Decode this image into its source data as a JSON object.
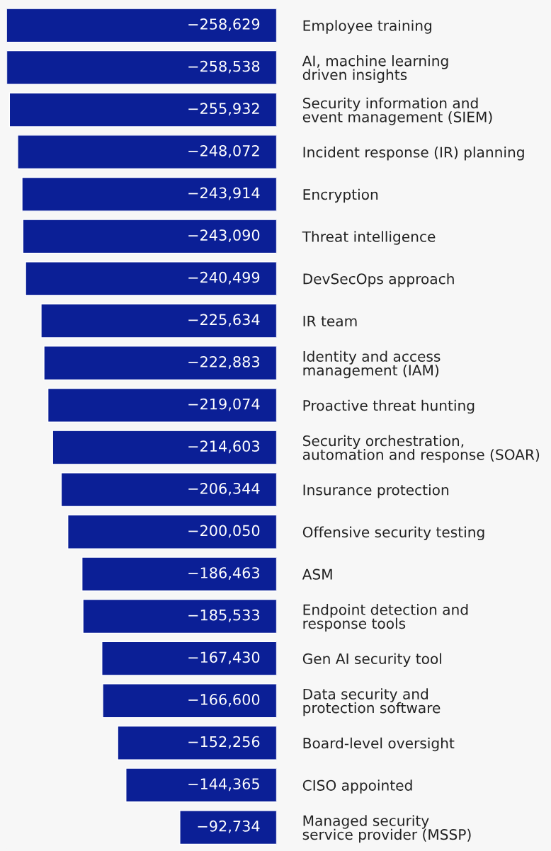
{
  "chart_data": {
    "type": "bar",
    "orientation": "horizontal",
    "tick_labels": "y",
    "grid": false,
    "legend": false,
    "categories": [
      "Employee training",
      "AI, machine learning\ndriven insights",
      "Security information and\nevent management (SIEM)",
      "Incident response (IR) planning",
      "Encryption",
      "Threat intelligence",
      "DevSecOps approach",
      "IR team",
      "Identity and access\nmanagement (IAM)",
      "Proactive threat hunting",
      "Security orchestration,\nautomation and response (SOAR)",
      "Insurance protection",
      "Offensive security testing",
      "ASM",
      "Endpoint detection and\nresponse tools",
      "Gen AI security tool",
      "Data security and\nprotection software",
      "Board-level oversight",
      "CISO appointed",
      "Managed security\nservice provider (MSSP)"
    ],
    "values": [
      -258629,
      -258538,
      -255932,
      -248072,
      -243914,
      -243090,
      -240499,
      -225634,
      -222883,
      -219074,
      -214603,
      -206344,
      -200050,
      -186463,
      -185533,
      -167430,
      -166600,
      -152256,
      -144365,
      -92734
    ],
    "value_labels": [
      "−258,629",
      "−258,538",
      "−255,932",
      "−248,072",
      "−243,914",
      "−243,090",
      "−240,499",
      "−225,634",
      "−222,883",
      "−219,074",
      "−214,603",
      "−206,344",
      "−200,050",
      "−186,463",
      "−185,533",
      "−167,430",
      "−166,600",
      "−152,256",
      "−144,365",
      "−92,734"
    ],
    "color": "#0b1f96"
  }
}
